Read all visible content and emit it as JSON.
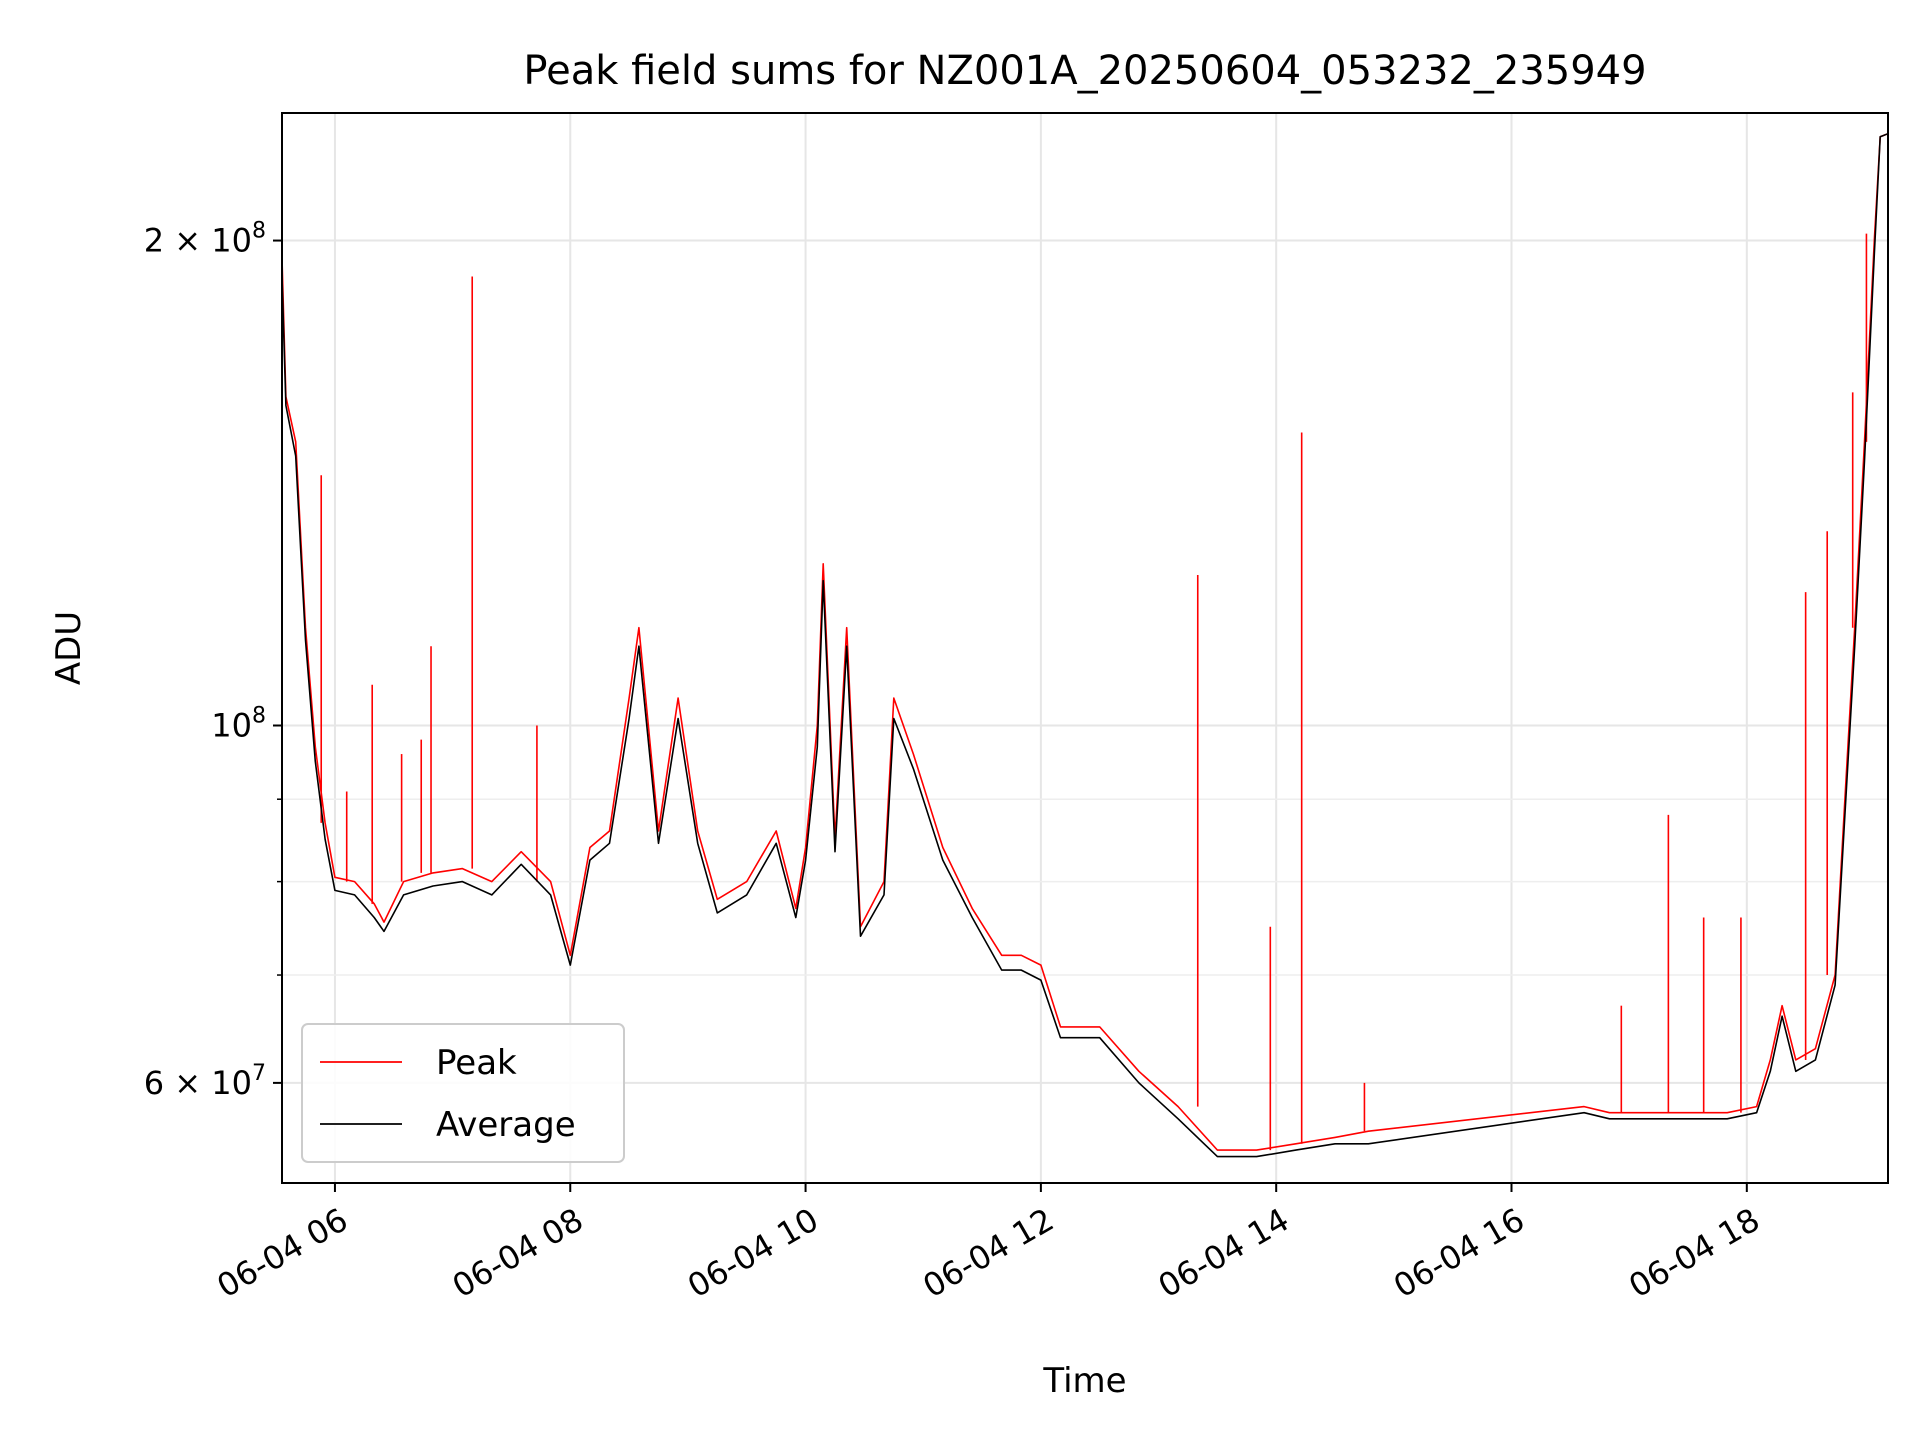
{
  "chart_data": {
    "type": "line",
    "title": "Peak field sums for NZ001A_20250604_053232_235949",
    "xlabel": "Time",
    "ylabel": "ADU",
    "y_scale": "log",
    "ylim": [
      52000000,
      240000000
    ],
    "xlim": [
      "2025-06-04 05:33",
      "2025-06-04 19:12"
    ],
    "x_ticks": [
      {
        "t": "2025-06-04 06:00",
        "label": "06-04 06"
      },
      {
        "t": "2025-06-04 08:00",
        "label": "06-04 08"
      },
      {
        "t": "2025-06-04 10:00",
        "label": "06-04 10"
      },
      {
        "t": "2025-06-04 12:00",
        "label": "06-04 12"
      },
      {
        "t": "2025-06-04 14:00",
        "label": "06-04 14"
      },
      {
        "t": "2025-06-04 16:00",
        "label": "06-04 16"
      },
      {
        "t": "2025-06-04 18:00",
        "label": "06-04 18"
      }
    ],
    "y_major_ticks": [
      {
        "v": 100000000,
        "base": "10",
        "exp": "8"
      },
      {
        "v": 200000000,
        "mant": "2",
        "base": "10",
        "exp": "8"
      },
      {
        "v": 60000000,
        "mant": "6",
        "base": "10",
        "exp": "7"
      }
    ],
    "y_minor_ticks": [
      70000000,
      80000000,
      90000000
    ],
    "grid": true,
    "legend": {
      "placement": "lower-left"
    },
    "series": [
      {
        "name": "Peak",
        "color": "#ff0000",
        "points": [
          [
            "2025-06-04 05:33",
            195000000
          ],
          [
            "2025-06-04 05:35",
            160000000
          ],
          [
            "2025-06-04 05:40",
            150000000
          ],
          [
            "2025-06-04 05:45",
            115000000
          ],
          [
            "2025-06-04 05:50",
            97000000
          ],
          [
            "2025-06-04 05:55",
            87000000
          ],
          [
            "2025-06-04 06:00",
            80500000
          ],
          [
            "2025-06-04 06:10",
            80000000
          ],
          [
            "2025-06-04 06:20",
            77500000
          ],
          [
            "2025-06-04 06:25",
            75500000
          ],
          [
            "2025-06-04 06:35",
            80000000
          ],
          [
            "2025-06-04 06:50",
            81000000
          ],
          [
            "2025-06-04 07:05",
            81500000
          ],
          [
            "2025-06-04 07:20",
            80000000
          ],
          [
            "2025-06-04 07:35",
            83500000
          ],
          [
            "2025-06-04 07:50",
            80000000
          ],
          [
            "2025-06-04 08:00",
            72000000
          ],
          [
            "2025-06-04 08:10",
            84000000
          ],
          [
            "2025-06-04 08:20",
            86000000
          ],
          [
            "2025-06-04 08:30",
            104000000
          ],
          [
            "2025-06-04 08:35",
            115000000
          ],
          [
            "2025-06-04 08:45",
            86000000
          ],
          [
            "2025-06-04 08:55",
            104000000
          ],
          [
            "2025-06-04 09:05",
            86000000
          ],
          [
            "2025-06-04 09:15",
            78000000
          ],
          [
            "2025-06-04 09:30",
            80000000
          ],
          [
            "2025-06-04 09:45",
            86000000
          ],
          [
            "2025-06-04 09:55",
            77000000
          ],
          [
            "2025-06-04 10:00",
            84000000
          ],
          [
            "2025-06-04 10:06",
            100000000
          ],
          [
            "2025-06-04 10:09",
            126000000
          ],
          [
            "2025-06-04 10:15",
            85000000
          ],
          [
            "2025-06-04 10:21",
            115000000
          ],
          [
            "2025-06-04 10:28",
            75000000
          ],
          [
            "2025-06-04 10:40",
            80000000
          ],
          [
            "2025-06-04 10:45",
            104000000
          ],
          [
            "2025-06-04 10:55",
            96000000
          ],
          [
            "2025-06-04 11:10",
            84000000
          ],
          [
            "2025-06-04 11:25",
            77000000
          ],
          [
            "2025-06-04 11:40",
            72000000
          ],
          [
            "2025-06-04 11:50",
            72000000
          ],
          [
            "2025-06-04 12:00",
            71000000
          ],
          [
            "2025-06-04 12:10",
            65000000
          ],
          [
            "2025-06-04 12:30",
            65000000
          ],
          [
            "2025-06-04 12:50",
            61000000
          ],
          [
            "2025-06-04 13:10",
            58000000
          ],
          [
            "2025-06-04 13:30",
            54500000
          ],
          [
            "2025-06-04 13:50",
            54500000
          ],
          [
            "2025-06-04 14:10",
            55000000
          ],
          [
            "2025-06-04 14:30",
            55500000
          ],
          [
            "2025-06-04 14:47",
            56000000
          ],
          [
            "2025-06-04 16:37",
            58000000
          ],
          [
            "2025-06-04 16:50",
            57500000
          ],
          [
            "2025-06-04 17:10",
            57500000
          ],
          [
            "2025-06-04 17:30",
            57500000
          ],
          [
            "2025-06-04 17:50",
            57500000
          ],
          [
            "2025-06-04 18:05",
            58000000
          ],
          [
            "2025-06-04 18:12",
            62000000
          ],
          [
            "2025-06-04 18:18",
            67000000
          ],
          [
            "2025-06-04 18:25",
            62000000
          ],
          [
            "2025-06-04 18:35",
            63000000
          ],
          [
            "2025-06-04 18:45",
            70000000
          ],
          [
            "2025-06-04 18:50",
            90000000
          ],
          [
            "2025-06-04 18:55",
            115000000
          ],
          [
            "2025-06-04 19:00",
            150000000
          ],
          [
            "2025-06-04 19:05",
            200000000
          ],
          [
            "2025-06-04 19:08",
            232000000
          ],
          [
            "2025-06-04 19:12",
            233000000
          ]
        ],
        "spikes": [
          [
            "2025-06-04 05:53",
            143000000
          ],
          [
            "2025-06-04 06:06",
            91000000
          ],
          [
            "2025-06-04 06:19",
            106000000
          ],
          [
            "2025-06-04 06:34",
            96000000
          ],
          [
            "2025-06-04 06:44",
            98000000
          ],
          [
            "2025-06-04 06:49",
            112000000
          ],
          [
            "2025-06-04 07:10",
            190000000
          ],
          [
            "2025-06-04 07:43",
            100000000
          ],
          [
            "2025-06-04 13:20",
            124000000
          ],
          [
            "2025-06-04 13:57",
            75000000
          ],
          [
            "2025-06-04 14:13",
            152000000
          ],
          [
            "2025-06-04 14:45",
            60000000
          ],
          [
            "2025-06-04 16:56",
            67000000
          ],
          [
            "2025-06-04 17:20",
            88000000
          ],
          [
            "2025-06-04 17:38",
            76000000
          ],
          [
            "2025-06-04 17:57",
            76000000
          ],
          [
            "2025-06-04 18:30",
            121000000
          ],
          [
            "2025-06-04 18:41",
            132000000
          ],
          [
            "2025-06-04 18:54",
            161000000
          ],
          [
            "2025-06-04 19:01",
            202000000
          ]
        ]
      },
      {
        "name": "Average",
        "color": "#000000",
        "points": [
          [
            "2025-06-04 05:33",
            190000000
          ],
          [
            "2025-06-04 05:35",
            158000000
          ],
          [
            "2025-06-04 05:40",
            147000000
          ],
          [
            "2025-06-04 05:45",
            113000000
          ],
          [
            "2025-06-04 05:50",
            95000000
          ],
          [
            "2025-06-04 05:55",
            85000000
          ],
          [
            "2025-06-04 06:00",
            79000000
          ],
          [
            "2025-06-04 06:10",
            78500000
          ],
          [
            "2025-06-04 06:20",
            76000000
          ],
          [
            "2025-06-04 06:25",
            74500000
          ],
          [
            "2025-06-04 06:35",
            78500000
          ],
          [
            "2025-06-04 06:50",
            79500000
          ],
          [
            "2025-06-04 07:05",
            80000000
          ],
          [
            "2025-06-04 07:20",
            78500000
          ],
          [
            "2025-06-04 07:35",
            82000000
          ],
          [
            "2025-06-04 07:50",
            78500000
          ],
          [
            "2025-06-04 08:00",
            71000000
          ],
          [
            "2025-06-04 08:10",
            82500000
          ],
          [
            "2025-06-04 08:20",
            84500000
          ],
          [
            "2025-06-04 08:30",
            101000000
          ],
          [
            "2025-06-04 08:35",
            112000000
          ],
          [
            "2025-06-04 08:45",
            84500000
          ],
          [
            "2025-06-04 08:55",
            101000000
          ],
          [
            "2025-06-04 09:05",
            84500000
          ],
          [
            "2025-06-04 09:15",
            76500000
          ],
          [
            "2025-06-04 09:30",
            78500000
          ],
          [
            "2025-06-04 09:45",
            84500000
          ],
          [
            "2025-06-04 09:55",
            76000000
          ],
          [
            "2025-06-04 10:00",
            82500000
          ],
          [
            "2025-06-04 10:06",
            97000000
          ],
          [
            "2025-06-04 10:09",
            123000000
          ],
          [
            "2025-06-04 10:15",
            83500000
          ],
          [
            "2025-06-04 10:21",
            112000000
          ],
          [
            "2025-06-04 10:28",
            74000000
          ],
          [
            "2025-06-04 10:40",
            78500000
          ],
          [
            "2025-06-04 10:45",
            101000000
          ],
          [
            "2025-06-04 10:55",
            94000000
          ],
          [
            "2025-06-04 11:10",
            82500000
          ],
          [
            "2025-06-04 11:25",
            76000000
          ],
          [
            "2025-06-04 11:40",
            70500000
          ],
          [
            "2025-06-04 11:50",
            70500000
          ],
          [
            "2025-06-04 12:00",
            69500000
          ],
          [
            "2025-06-04 12:10",
            64000000
          ],
          [
            "2025-06-04 12:30",
            64000000
          ],
          [
            "2025-06-04 12:50",
            60000000
          ],
          [
            "2025-06-04 13:10",
            57000000
          ],
          [
            "2025-06-04 13:30",
            54000000
          ],
          [
            "2025-06-04 13:50",
            54000000
          ],
          [
            "2025-06-04 14:10",
            54500000
          ],
          [
            "2025-06-04 14:30",
            55000000
          ],
          [
            "2025-06-04 14:47",
            55000000
          ],
          [
            "2025-06-04 16:37",
            57500000
          ],
          [
            "2025-06-04 16:50",
            57000000
          ],
          [
            "2025-06-04 17:10",
            57000000
          ],
          [
            "2025-06-04 17:30",
            57000000
          ],
          [
            "2025-06-04 17:50",
            57000000
          ],
          [
            "2025-06-04 18:05",
            57500000
          ],
          [
            "2025-06-04 18:12",
            61000000
          ],
          [
            "2025-06-04 18:18",
            66000000
          ],
          [
            "2025-06-04 18:25",
            61000000
          ],
          [
            "2025-06-04 18:35",
            62000000
          ],
          [
            "2025-06-04 18:45",
            69000000
          ],
          [
            "2025-06-04 18:50",
            88000000
          ],
          [
            "2025-06-04 18:55",
            112000000
          ],
          [
            "2025-06-04 19:00",
            146000000
          ],
          [
            "2025-06-04 19:05",
            196000000
          ],
          [
            "2025-06-04 19:08",
            232000000
          ],
          [
            "2025-06-04 19:12",
            233000000
          ]
        ]
      }
    ]
  }
}
